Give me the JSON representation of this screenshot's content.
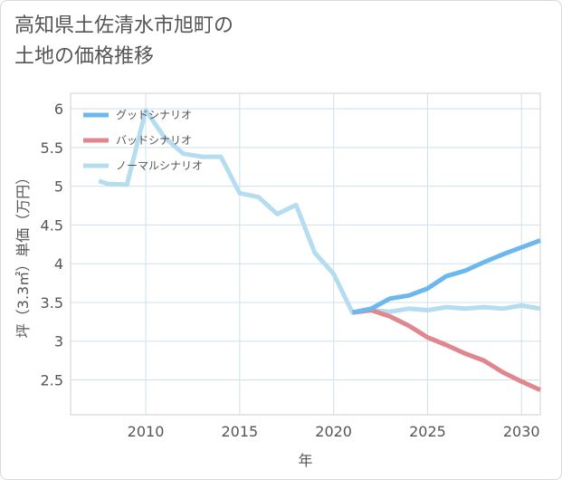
{
  "title_line1": "高知県土佐清水市旭町の",
  "title_line2": "土地の価格推移",
  "chart_data": {
    "type": "line",
    "xlabel": "年",
    "ylabel": "坪（3.3㎡）単価（万円）",
    "xlim": [
      2006,
      2031
    ],
    "ylim": [
      2.05,
      6.2
    ],
    "xticks": [
      2010,
      2015,
      2020,
      2025,
      2030
    ],
    "yticks": [
      2.5,
      3,
      3.5,
      4,
      4.5,
      5,
      5.5,
      6
    ],
    "xtick_labels": [
      "2010",
      "2015",
      "2020",
      "2025",
      "2030"
    ],
    "ytick_labels": [
      "2.5",
      "3",
      "3.5",
      "4",
      "4.5",
      "5",
      "5.5",
      "6"
    ],
    "grid": true,
    "legend_position": "top-left",
    "series": [
      {
        "name": "グッドシナリオ",
        "color": "#6cb8ee",
        "x": [
          2021,
          2022,
          2023,
          2024,
          2025,
          2026,
          2027,
          2028,
          2029,
          2030,
          2031
        ],
        "y": [
          3.37,
          3.42,
          3.55,
          3.59,
          3.68,
          3.84,
          3.91,
          4.02,
          4.12,
          4.21,
          4.3
        ]
      },
      {
        "name": "バッドシナリオ",
        "color": "#e0868f",
        "x": [
          2021,
          2022,
          2023,
          2024,
          2025,
          2026,
          2027,
          2028,
          2029,
          2030,
          2031
        ],
        "y": [
          3.37,
          3.4,
          3.32,
          3.2,
          3.05,
          2.95,
          2.84,
          2.75,
          2.6,
          2.48,
          2.37
        ]
      },
      {
        "name": "ノーマルシナリオ",
        "color": "#b6ddef",
        "x": [
          2007.5,
          2008,
          2009,
          2010,
          2011,
          2012,
          2013,
          2014,
          2015,
          2016,
          2017,
          2018,
          2019,
          2020,
          2021,
          2022,
          2023,
          2024,
          2025,
          2026,
          2027,
          2028,
          2029,
          2030,
          2031
        ],
        "y": [
          5.07,
          5.03,
          5.02,
          5.98,
          5.63,
          5.42,
          5.38,
          5.38,
          4.91,
          4.86,
          4.64,
          4.76,
          4.14,
          3.87,
          3.37,
          3.4,
          3.38,
          3.42,
          3.4,
          3.44,
          3.42,
          3.44,
          3.42,
          3.46,
          3.42
        ]
      }
    ]
  }
}
